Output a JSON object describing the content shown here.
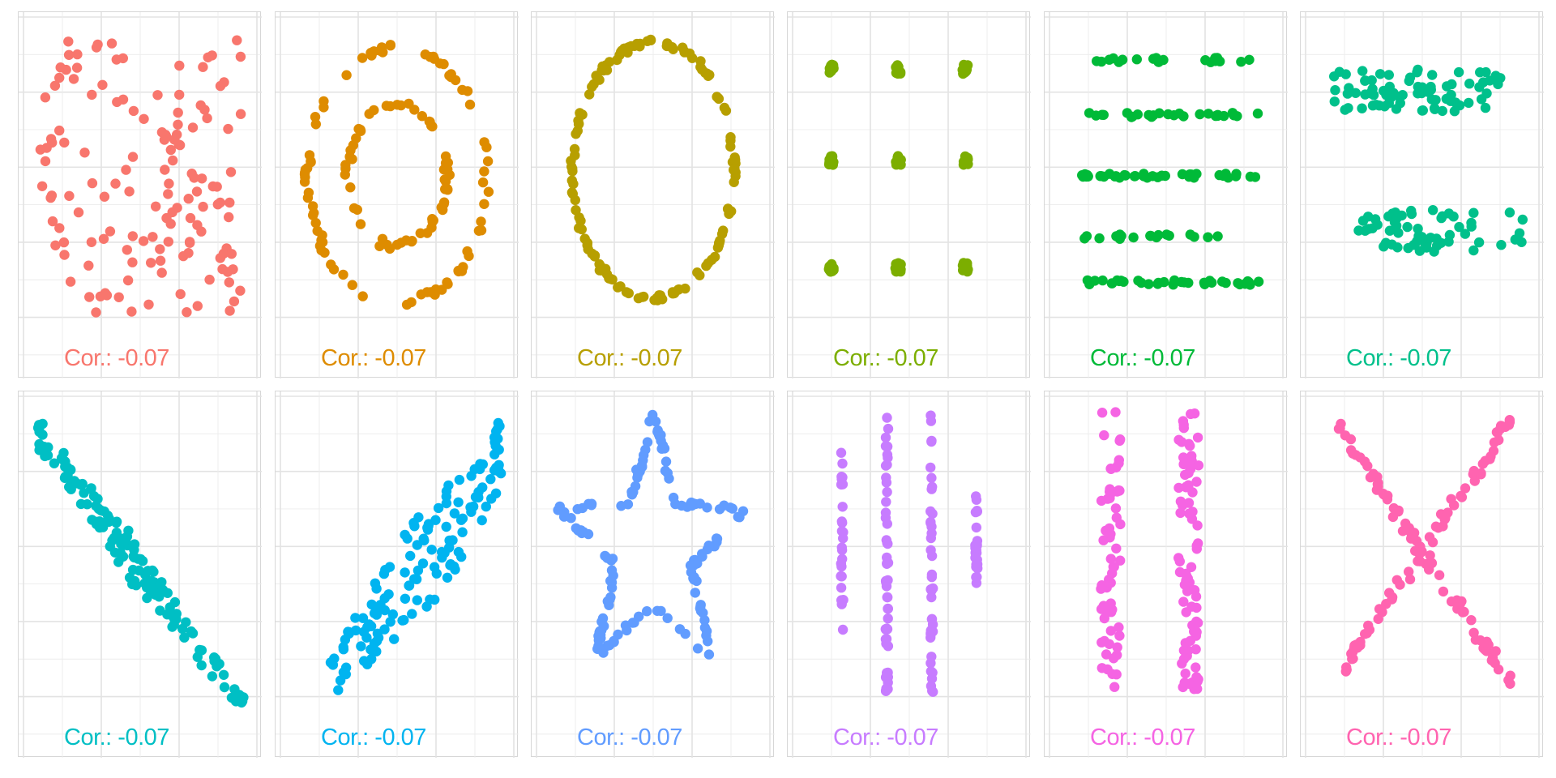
{
  "panel_label_prefix": "Cor.:",
  "chart_data": [
    {
      "type": "scatter",
      "name": "away",
      "correlation_label": "Cor.: -0.07",
      "color": "#F8766D",
      "generator": {
        "kind": "uniform",
        "count": 140
      },
      "x_range": [
        0,
        100
      ],
      "y_range": [
        0,
        100
      ],
      "grid": true
    },
    {
      "type": "scatter",
      "name": "bullseye",
      "correlation_label": "Cor.: -0.07",
      "color": "#DE8C00",
      "generator": {
        "kind": "rings",
        "count": 140
      },
      "x_range": [
        0,
        100
      ],
      "y_range": [
        0,
        100
      ],
      "grid": true
    },
    {
      "type": "scatter",
      "name": "circle",
      "correlation_label": "Cor.: -0.07",
      "color": "#B79F00",
      "generator": {
        "kind": "circle",
        "count": 140
      },
      "x_range": [
        0,
        100
      ],
      "y_range": [
        0,
        100
      ],
      "grid": true
    },
    {
      "type": "scatter",
      "name": "dots",
      "correlation_label": "Cor.: -0.07",
      "color": "#7CAE00",
      "generator": {
        "kind": "dots",
        "count": 140
      },
      "x_range": [
        0,
        100
      ],
      "y_range": [
        0,
        100
      ],
      "grid": true
    },
    {
      "type": "scatter",
      "name": "h_lines",
      "correlation_label": "Cor.: -0.07",
      "color": "#00BA38",
      "generator": {
        "kind": "hlines",
        "count": 140
      },
      "x_range": [
        0,
        100
      ],
      "y_range": [
        0,
        100
      ],
      "grid": true
    },
    {
      "type": "scatter",
      "name": "high_lines",
      "correlation_label": "Cor.: -0.07",
      "color": "#00C08B",
      "generator": {
        "kind": "twoclusters",
        "count": 140
      },
      "x_range": [
        0,
        100
      ],
      "y_range": [
        0,
        100
      ],
      "grid": true
    },
    {
      "type": "scatter",
      "name": "slant_down",
      "correlation_label": "Cor.: -0.07",
      "color": "#00BFC4",
      "generator": {
        "kind": "slantdown",
        "count": 140
      },
      "x_range": [
        0,
        100
      ],
      "y_range": [
        0,
        100
      ],
      "grid": true
    },
    {
      "type": "scatter",
      "name": "slant_up",
      "correlation_label": "Cor.: -0.07",
      "color": "#00B4F0",
      "generator": {
        "kind": "slantup",
        "count": 140
      },
      "x_range": [
        0,
        100
      ],
      "y_range": [
        0,
        100
      ],
      "grid": true
    },
    {
      "type": "scatter",
      "name": "star",
      "correlation_label": "Cor.: -0.07",
      "color": "#619CFF",
      "generator": {
        "kind": "star",
        "count": 140
      },
      "x_range": [
        0,
        100
      ],
      "y_range": [
        0,
        100
      ],
      "grid": true
    },
    {
      "type": "scatter",
      "name": "v_lines",
      "correlation_label": "Cor.: -0.07",
      "color": "#C77CFF",
      "generator": {
        "kind": "vlines",
        "count": 140
      },
      "x_range": [
        0,
        100
      ],
      "y_range": [
        0,
        100
      ],
      "grid": true
    },
    {
      "type": "scatter",
      "name": "wide_lines",
      "correlation_label": "Cor.: -0.07",
      "color": "#F564E3",
      "generator": {
        "kind": "widelines",
        "count": 140
      },
      "x_range": [
        0,
        100
      ],
      "y_range": [
        0,
        100
      ],
      "grid": true
    },
    {
      "type": "scatter",
      "name": "x_shape",
      "correlation_label": "Cor.: -0.07",
      "color": "#FF64B0",
      "generator": {
        "kind": "xshape",
        "count": 140
      },
      "x_range": [
        0,
        100
      ],
      "y_range": [
        0,
        100
      ],
      "grid": true
    }
  ]
}
